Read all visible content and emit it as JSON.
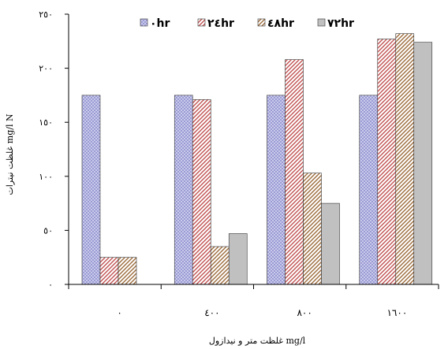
{
  "chart_data": {
    "type": "bar",
    "categories": [
      "٠",
      "٤٠٠",
      "٨٠٠",
      "١٦٠٠"
    ],
    "series": [
      {
        "name": "٠hr",
        "values": [
          175,
          175,
          175,
          175
        ],
        "color": "#b7b7e6",
        "pattern": "crosshatch"
      },
      {
        "name": "٢٤hr",
        "values": [
          25,
          171,
          208,
          227
        ],
        "color": "#e3a3a3",
        "pattern": "diagonal-red"
      },
      {
        "name": "٤٨hr",
        "values": [
          25,
          35,
          103,
          232
        ],
        "color": "#c9a887",
        "pattern": "diagonal-brown"
      },
      {
        "name": "٧٢hr",
        "values": [
          0,
          47,
          75,
          224
        ],
        "color": "#bfbfbf",
        "pattern": "solid-gray"
      }
    ],
    "ylim": [
      0,
      250
    ],
    "yticks": [
      {
        "value": 0,
        "label": "٠"
      },
      {
        "value": 50,
        "label": "٥٠"
      },
      {
        "value": 100,
        "label": "١٠٠"
      },
      {
        "value": 150,
        "label": "١٥٠"
      },
      {
        "value": 200,
        "label": "٢٠٠"
      },
      {
        "value": 250,
        "label": "٢٥٠"
      }
    ],
    "xlabel": "غلظت متر و نیدازول mg/l",
    "ylabel": "غلظت نیترات mg/l N",
    "legend_position": "top"
  }
}
